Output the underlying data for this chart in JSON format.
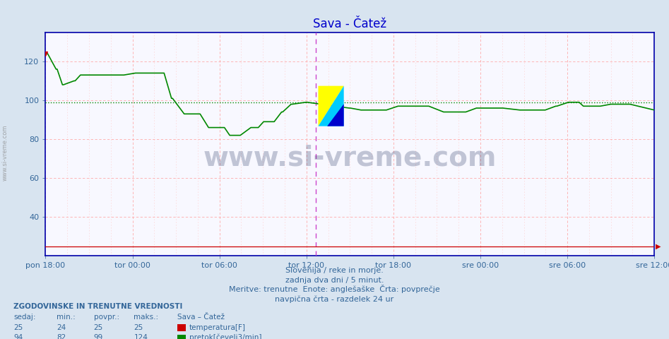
{
  "title": "Sava - Čatež",
  "title_color": "#0000cc",
  "bg_color": "#d8e4f0",
  "plot_bg_color": "#f8f8ff",
  "xlabel": "",
  "ylabel": "",
  "ylim": [
    20,
    135
  ],
  "yticks": [
    40,
    60,
    80,
    100,
    120
  ],
  "x_labels": [
    "pon 18:00",
    "tor 00:00",
    "tor 06:00",
    "tor 12:00",
    "tor 18:00",
    "sre 00:00",
    "sre 06:00",
    "sre 12:00"
  ],
  "x_label_color": "#336699",
  "avg_line_value": 99,
  "avg_line_color": "#008800",
  "temp_color": "#cc0000",
  "flow_color": "#008800",
  "vline_color": "#cc44cc",
  "vline_position": 0.4444,
  "watermark": "www.si-vreme.com",
  "watermark_color": "#1a2a5a",
  "watermark_alpha": 0.25,
  "footer_line1": "Slovenija / reke in morje.",
  "footer_line2": "zadnja dva dni / 5 minut.",
  "footer_line3": "Meritve: trenutne  Enote: anglešaške  Črta: povprečje",
  "footer_line4": "navpična črta - razdelek 24 ur",
  "footer_color": "#336699",
  "legend_title": "ZGODOVINSKE IN TRENUTNE VREDNOSTI",
  "legend_header": [
    "sedaj:",
    "min.:",
    "povpr.:",
    "maks.:"
  ],
  "legend_temp": [
    25,
    24,
    25,
    25
  ],
  "legend_flow": [
    94,
    82,
    99,
    124
  ],
  "legend_temp_label": "temperatura[F]",
  "legend_flow_label": "pretok[čevelj3/min]",
  "legend_color": "#336699",
  "border_color": "#0000aa",
  "tick_color": "#336699",
  "num_points": 576,
  "temp_value": 25,
  "side_watermark": "www.si-vreme.com"
}
